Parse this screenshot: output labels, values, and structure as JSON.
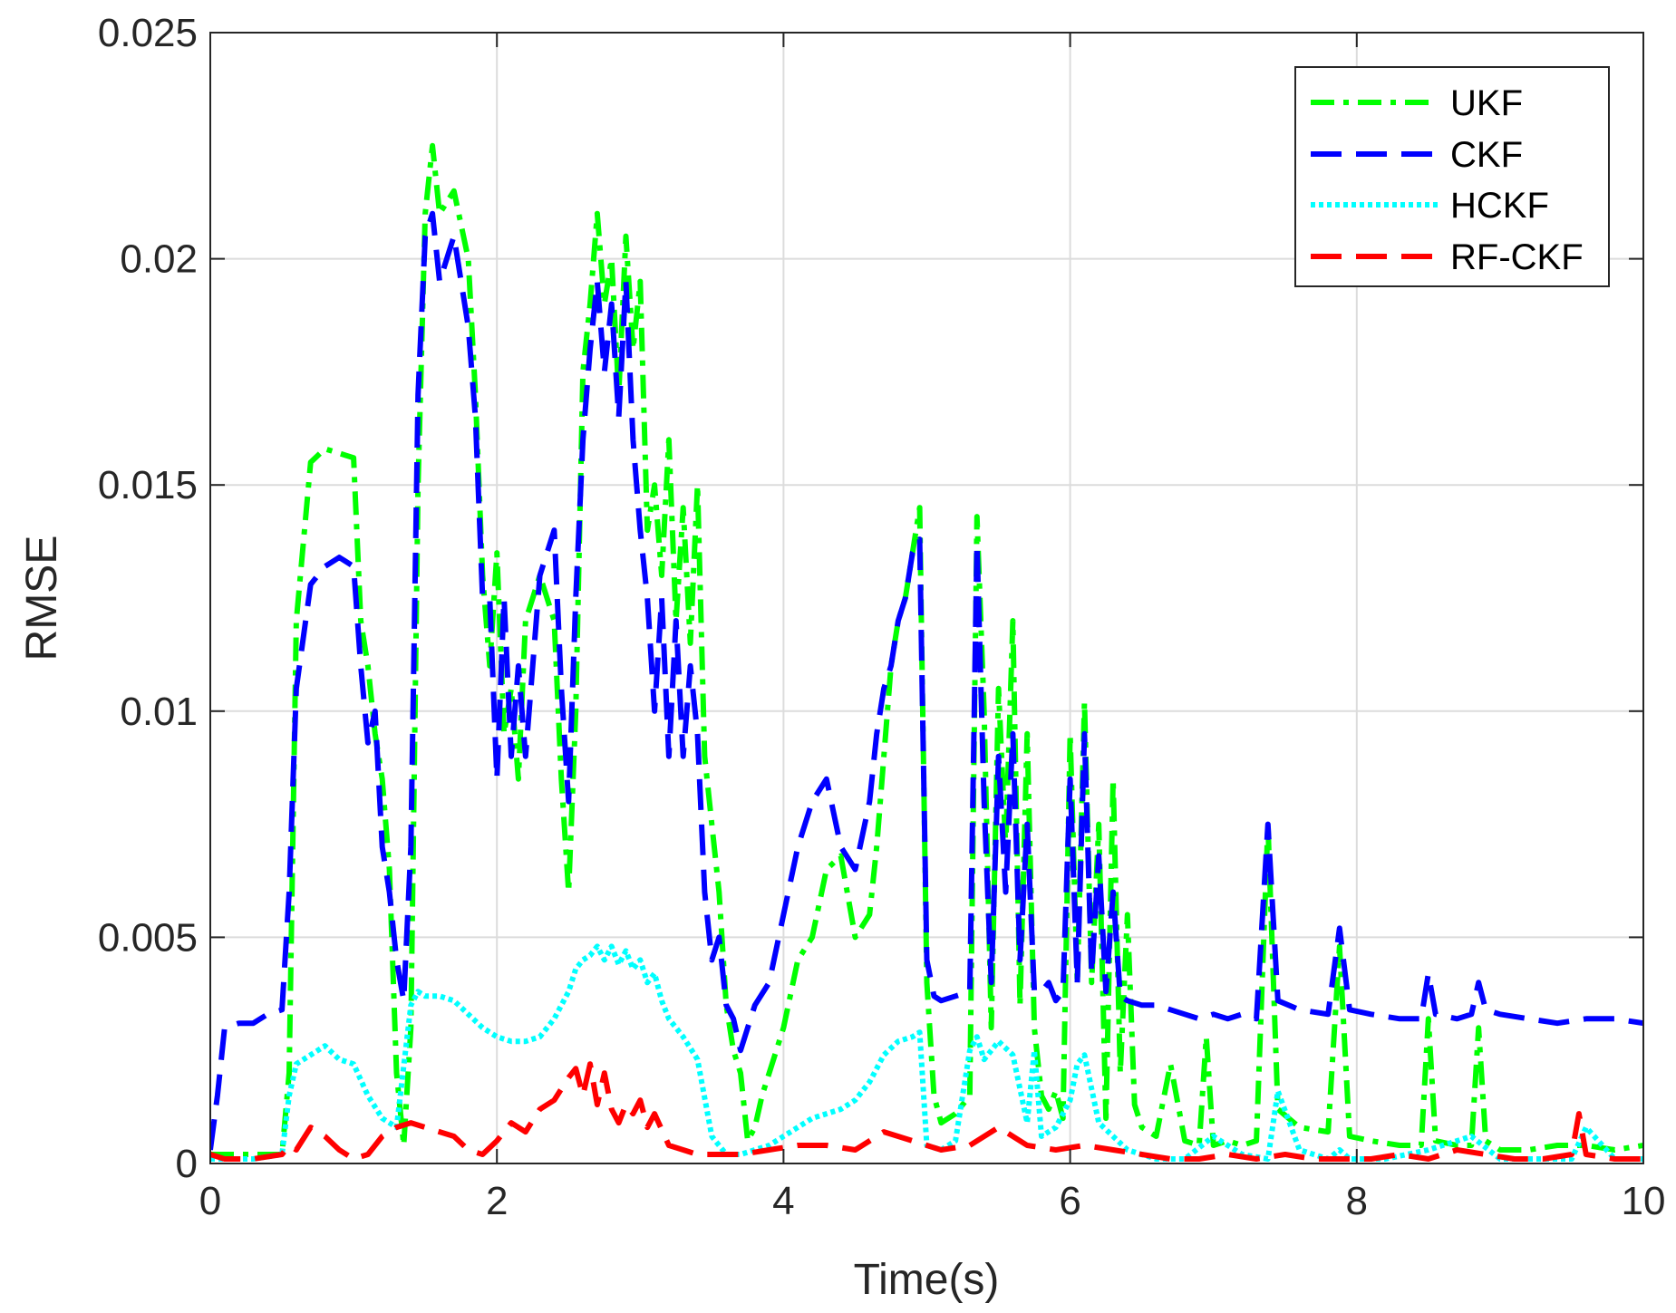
{
  "chart_data": {
    "type": "line",
    "title": "",
    "xlabel": "Time(s)",
    "ylabel": "RMSE",
    "xlim": [
      0,
      10
    ],
    "ylim": [
      0,
      0.025
    ],
    "xticks": [
      0,
      2,
      4,
      6,
      8,
      10
    ],
    "yticks": [
      0,
      0.005,
      0.01,
      0.015,
      0.02,
      0.025
    ],
    "xtick_labels": [
      "0",
      "2",
      "4",
      "6",
      "8",
      "10"
    ],
    "ytick_labels": [
      "0",
      "0.005",
      "0.01",
      "0.015",
      "0.02",
      "0.025"
    ],
    "grid": true,
    "legend_position": "top-right",
    "series": [
      {
        "name": "UKF",
        "color": "#00ff00",
        "style": "dash-dot",
        "x": [
          0,
          0.2,
          0.4,
          0.5,
          0.55,
          0.6,
          0.7,
          0.8,
          0.9,
          1.0,
          1.05,
          1.1,
          1.15,
          1.2,
          1.25,
          1.3,
          1.35,
          1.4,
          1.45,
          1.5,
          1.55,
          1.6,
          1.7,
          1.8,
          1.85,
          1.9,
          1.95,
          2.0,
          2.05,
          2.1,
          2.15,
          2.2,
          2.3,
          2.4,
          2.45,
          2.5,
          2.55,
          2.6,
          2.65,
          2.7,
          2.75,
          2.8,
          2.85,
          2.9,
          2.95,
          3.0,
          3.05,
          3.1,
          3.15,
          3.2,
          3.25,
          3.3,
          3.35,
          3.4,
          3.45,
          3.5,
          3.55,
          3.6,
          3.65,
          3.7,
          3.75,
          3.8,
          3.85,
          3.9,
          4.0,
          4.1,
          4.2,
          4.3,
          4.4,
          4.5,
          4.6,
          4.65,
          4.7,
          4.75,
          4.8,
          4.85,
          4.9,
          4.95,
          5.0,
          5.05,
          5.1,
          5.2,
          5.3,
          5.35,
          5.4,
          5.45,
          5.5,
          5.55,
          5.6,
          5.65,
          5.7,
          5.75,
          5.8,
          5.85,
          5.9,
          5.95,
          6.0,
          6.05,
          6.1,
          6.15,
          6.2,
          6.25,
          6.3,
          6.35,
          6.4,
          6.45,
          6.5,
          6.6,
          6.7,
          6.8,
          6.9,
          6.95,
          7.0,
          7.1,
          7.2,
          7.3,
          7.38,
          7.45,
          7.6,
          7.8,
          7.88,
          7.95,
          8.1,
          8.3,
          8.45,
          8.5,
          8.55,
          8.7,
          8.8,
          8.85,
          8.9,
          9.0,
          9.2,
          9.4,
          9.6,
          9.8,
          10.0
        ],
        "y": [
          0.0002,
          0.0002,
          0.0002,
          0.0002,
          0.002,
          0.012,
          0.0155,
          0.0158,
          0.0157,
          0.0156,
          0.012,
          0.011,
          0.0095,
          0.0085,
          0.0065,
          0.002,
          0.0004,
          0.003,
          0.015,
          0.021,
          0.0225,
          0.021,
          0.0215,
          0.02,
          0.017,
          0.013,
          0.011,
          0.0135,
          0.0095,
          0.0105,
          0.0085,
          0.012,
          0.013,
          0.012,
          0.0085,
          0.006,
          0.01,
          0.0175,
          0.019,
          0.021,
          0.019,
          0.02,
          0.017,
          0.0205,
          0.018,
          0.0195,
          0.014,
          0.015,
          0.013,
          0.016,
          0.012,
          0.0145,
          0.0115,
          0.015,
          0.009,
          0.0075,
          0.006,
          0.0035,
          0.0025,
          0.002,
          0.0005,
          0.0008,
          0.0015,
          0.002,
          0.003,
          0.0045,
          0.005,
          0.0065,
          0.0068,
          0.005,
          0.0055,
          0.007,
          0.009,
          0.011,
          0.012,
          0.0125,
          0.0135,
          0.0145,
          0.004,
          0.0015,
          0.0009,
          0.0011,
          0.0015,
          0.0143,
          0.01,
          0.003,
          0.0105,
          0.007,
          0.012,
          0.0035,
          0.0095,
          0.003,
          0.0015,
          0.0012,
          0.0016,
          0.001,
          0.0095,
          0.004,
          0.0102,
          0.004,
          0.0075,
          0.001,
          0.0085,
          0.002,
          0.0055,
          0.0013,
          0.0008,
          0.0006,
          0.0022,
          0.0005,
          0.0004,
          0.0028,
          0.0004,
          0.0005,
          0.0004,
          0.0005,
          0.0075,
          0.0012,
          0.0008,
          0.0007,
          0.0048,
          0.0006,
          0.0005,
          0.0004,
          0.0004,
          0.0032,
          0.0005,
          0.0004,
          0.0004,
          0.003,
          0.0005,
          0.0003,
          0.0003,
          0.0004,
          0.0004,
          0.0003,
          0.0004
        ]
      },
      {
        "name": "CKF",
        "color": "#0000ff",
        "style": "dashed",
        "x": [
          0,
          0.05,
          0.1,
          0.2,
          0.3,
          0.4,
          0.5,
          0.55,
          0.6,
          0.7,
          0.8,
          0.9,
          1.0,
          1.05,
          1.1,
          1.15,
          1.2,
          1.25,
          1.3,
          1.35,
          1.4,
          1.45,
          1.5,
          1.55,
          1.6,
          1.7,
          1.8,
          1.85,
          1.9,
          1.95,
          2.0,
          2.05,
          2.1,
          2.15,
          2.2,
          2.3,
          2.4,
          2.45,
          2.5,
          2.55,
          2.6,
          2.65,
          2.7,
          2.75,
          2.8,
          2.85,
          2.9,
          2.95,
          3.0,
          3.05,
          3.1,
          3.15,
          3.2,
          3.25,
          3.3,
          3.35,
          3.4,
          3.45,
          3.5,
          3.55,
          3.6,
          3.65,
          3.7,
          3.8,
          3.9,
          4.0,
          4.1,
          4.2,
          4.3,
          4.4,
          4.5,
          4.6,
          4.65,
          4.7,
          4.75,
          4.8,
          4.85,
          4.9,
          4.95,
          5.0,
          5.05,
          5.1,
          5.2,
          5.3,
          5.35,
          5.4,
          5.45,
          5.5,
          5.55,
          5.6,
          5.65,
          5.7,
          5.75,
          5.8,
          5.85,
          5.9,
          5.95,
          6.0,
          6.05,
          6.1,
          6.15,
          6.2,
          6.25,
          6.3,
          6.35,
          6.4,
          6.5,
          6.6,
          6.7,
          6.8,
          6.9,
          7.0,
          7.1,
          7.2,
          7.3,
          7.38,
          7.45,
          7.6,
          7.8,
          7.88,
          7.95,
          8.1,
          8.3,
          8.45,
          8.5,
          8.55,
          8.7,
          8.8,
          8.85,
          8.9,
          9.0,
          9.2,
          9.4,
          9.6,
          9.8,
          10.0
        ],
        "y": [
          0.0003,
          0.0015,
          0.003,
          0.0031,
          0.0031,
          0.0033,
          0.0034,
          0.006,
          0.0105,
          0.0128,
          0.0132,
          0.0134,
          0.0132,
          0.011,
          0.0093,
          0.01,
          0.007,
          0.006,
          0.0045,
          0.0036,
          0.007,
          0.017,
          0.0205,
          0.021,
          0.0195,
          0.0205,
          0.0185,
          0.0165,
          0.0125,
          0.0125,
          0.0085,
          0.0125,
          0.009,
          0.011,
          0.009,
          0.013,
          0.014,
          0.0105,
          0.008,
          0.0125,
          0.016,
          0.018,
          0.0195,
          0.0175,
          0.019,
          0.0165,
          0.0195,
          0.016,
          0.014,
          0.0125,
          0.01,
          0.0125,
          0.009,
          0.012,
          0.009,
          0.011,
          0.0095,
          0.006,
          0.0045,
          0.005,
          0.0035,
          0.0032,
          0.0025,
          0.0035,
          0.004,
          0.0055,
          0.007,
          0.008,
          0.0085,
          0.007,
          0.0065,
          0.008,
          0.0095,
          0.0105,
          0.011,
          0.012,
          0.0125,
          0.0135,
          0.0138,
          0.0045,
          0.0037,
          0.0036,
          0.0037,
          0.0038,
          0.0137,
          0.008,
          0.004,
          0.009,
          0.006,
          0.0095,
          0.0045,
          0.0075,
          0.0038,
          0.0038,
          0.004,
          0.0036,
          0.0038,
          0.0085,
          0.004,
          0.0095,
          0.0042,
          0.0068,
          0.0038,
          0.006,
          0.0037,
          0.0036,
          0.0035,
          0.0035,
          0.0034,
          0.0033,
          0.0032,
          0.0033,
          0.0032,
          0.0033,
          0.0032,
          0.0075,
          0.0036,
          0.0034,
          0.0033,
          0.0052,
          0.0034,
          0.0033,
          0.0032,
          0.0032,
          0.0042,
          0.0033,
          0.0032,
          0.0033,
          0.004,
          0.0034,
          0.0033,
          0.0032,
          0.0031,
          0.0032,
          0.0032,
          0.0031
        ]
      },
      {
        "name": "HCKF",
        "color": "#00ffff",
        "style": "dotted",
        "x": [
          0,
          0.3,
          0.5,
          0.55,
          0.6,
          0.7,
          0.8,
          0.9,
          1.0,
          1.1,
          1.2,
          1.3,
          1.4,
          1.45,
          1.5,
          1.6,
          1.7,
          1.8,
          1.9,
          2.0,
          2.1,
          2.2,
          2.3,
          2.4,
          2.5,
          2.55,
          2.6,
          2.65,
          2.7,
          2.75,
          2.8,
          2.85,
          2.9,
          2.95,
          3.0,
          3.05,
          3.1,
          3.15,
          3.2,
          3.3,
          3.4,
          3.5,
          3.6,
          3.7,
          3.8,
          3.9,
          4.0,
          4.2,
          4.4,
          4.5,
          4.6,
          4.7,
          4.8,
          4.9,
          4.95,
          5.0,
          5.1,
          5.2,
          5.3,
          5.35,
          5.4,
          5.5,
          5.6,
          5.7,
          5.75,
          5.8,
          5.9,
          6.0,
          6.05,
          6.1,
          6.2,
          6.4,
          6.6,
          6.8,
          7.0,
          7.2,
          7.38,
          7.45,
          7.6,
          7.8,
          7.88,
          7.95,
          8.2,
          8.5,
          8.8,
          9.0,
          9.2,
          9.5,
          9.6,
          9.8,
          10.0
        ],
        "y": [
          0.0001,
          0.0001,
          0.0002,
          0.0015,
          0.0022,
          0.0024,
          0.0026,
          0.0023,
          0.0022,
          0.0015,
          0.001,
          0.0008,
          0.0035,
          0.0038,
          0.0037,
          0.0037,
          0.0036,
          0.0033,
          0.003,
          0.0028,
          0.0027,
          0.0027,
          0.0028,
          0.0032,
          0.0038,
          0.0043,
          0.0045,
          0.0046,
          0.0048,
          0.0045,
          0.0048,
          0.0044,
          0.0047,
          0.0043,
          0.0045,
          0.004,
          0.0042,
          0.0036,
          0.0032,
          0.0028,
          0.0023,
          0.0006,
          0.0002,
          0.0002,
          0.0003,
          0.0004,
          0.0006,
          0.001,
          0.0012,
          0.0014,
          0.0018,
          0.0024,
          0.0027,
          0.0028,
          0.0029,
          0.0004,
          0.0003,
          0.0005,
          0.0025,
          0.0028,
          0.0023,
          0.0027,
          0.0024,
          0.0009,
          0.0025,
          0.0006,
          0.0008,
          0.0014,
          0.0022,
          0.0024,
          0.0009,
          0.0003,
          0.0001,
          0.0001,
          0.0006,
          0.0002,
          0.0001,
          0.0016,
          0.0003,
          0.0001,
          0.0003,
          0.0001,
          0.0001,
          0.0003,
          0.0006,
          0.0001,
          0.0001,
          0.0001,
          0.0008,
          0.0001,
          0.0001
        ]
      },
      {
        "name": "RF-CKF",
        "color": "#ff0000",
        "style": "dashed",
        "x": [
          0,
          0.1,
          0.3,
          0.5,
          0.55,
          0.6,
          0.7,
          0.8,
          0.9,
          1.0,
          1.1,
          1.2,
          1.3,
          1.4,
          1.5,
          1.6,
          1.7,
          1.8,
          1.9,
          2.0,
          2.1,
          2.2,
          2.3,
          2.4,
          2.5,
          2.55,
          2.6,
          2.65,
          2.7,
          2.75,
          2.8,
          2.85,
          2.9,
          2.95,
          3.0,
          3.05,
          3.1,
          3.2,
          3.3,
          3.4,
          3.5,
          3.7,
          3.9,
          4.1,
          4.3,
          4.5,
          4.7,
          4.9,
          5.1,
          5.3,
          5.5,
          5.7,
          5.9,
          6.1,
          6.3,
          6.5,
          6.7,
          6.9,
          7.1,
          7.3,
          7.5,
          7.7,
          7.9,
          8.1,
          8.3,
          8.5,
          8.7,
          8.9,
          9.1,
          9.3,
          9.5,
          9.55,
          9.6,
          9.8,
          10.0
        ],
        "y": [
          0.0002,
          0.0001,
          0.0001,
          0.0002,
          0.0004,
          0.0003,
          0.0008,
          0.0006,
          0.0003,
          0.0001,
          0.0002,
          0.0006,
          0.0008,
          0.0009,
          0.0008,
          0.0007,
          0.0006,
          0.0003,
          0.0002,
          0.0005,
          0.0009,
          0.0007,
          0.0012,
          0.0014,
          0.0019,
          0.0021,
          0.0015,
          0.0022,
          0.0013,
          0.002,
          0.0012,
          0.0009,
          0.0013,
          0.0011,
          0.0014,
          0.0008,
          0.0011,
          0.0004,
          0.0003,
          0.0002,
          0.0002,
          0.0002,
          0.0003,
          0.0004,
          0.0004,
          0.0003,
          0.0007,
          0.0005,
          0.0003,
          0.0004,
          0.0008,
          0.0004,
          0.0003,
          0.0004,
          0.0003,
          0.0002,
          0.0001,
          0.0001,
          0.0002,
          0.0001,
          0.0002,
          0.0001,
          0.0001,
          0.0001,
          0.0002,
          0.0001,
          0.0003,
          0.0002,
          0.0001,
          0.0001,
          0.0002,
          0.0011,
          0.0002,
          0.0001,
          0.0001
        ]
      }
    ]
  }
}
